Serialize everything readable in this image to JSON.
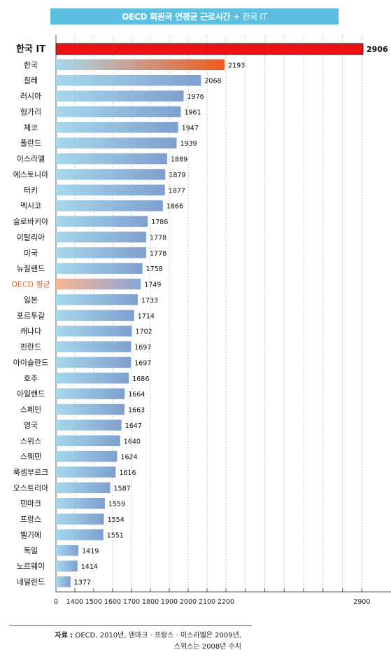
{
  "title": {
    "main": "OECD 회원국 연평균 근로시간",
    "highlight": "+ 한국 IT"
  },
  "chart_data": {
    "type": "bar",
    "orientation": "horizontal",
    "title": "OECD 회원국 연평균 근로시간 + 한국 IT",
    "categories": [
      "한국 IT",
      "한국",
      "칠레",
      "러시아",
      "헝가리",
      "체코",
      "폴란드",
      "이스라엘",
      "에스토니아",
      "터키",
      "멕시코",
      "슬로바키아",
      "이탈리아",
      "미국",
      "뉴질랜드",
      "OECD 평균",
      "일본",
      "포르투갈",
      "캐나다",
      "핀란드",
      "아이슬란드",
      "호주",
      "아일랜드",
      "스페인",
      "영국",
      "스위스",
      "스웨덴",
      "룩셈부르크",
      "오스트리아",
      "덴마크",
      "프랑스",
      "벨기에",
      "독일",
      "노르웨이",
      "네덜란드"
    ],
    "values": [
      2906,
      2193,
      2068,
      1976,
      1961,
      1947,
      1939,
      1889,
      1879,
      1877,
      1866,
      1786,
      1778,
      1778,
      1758,
      1749,
      1733,
      1714,
      1702,
      1697,
      1697,
      1686,
      1664,
      1663,
      1647,
      1640,
      1624,
      1616,
      1587,
      1559,
      1554,
      1551,
      1419,
      1414,
      1377
    ],
    "value_labels": [
      "2906",
      "2193",
      "2068",
      "1976",
      "1961",
      "1947",
      "1939",
      "1889",
      "1879",
      "1877",
      "1866",
      "1786",
      "1778",
      "1778",
      "1758",
      "1749",
      "1733",
      "1714",
      "1702",
      "1697",
      "1697",
      "1686",
      "1664",
      "1663",
      "1647",
      "1640",
      "1624",
      "1616",
      "1587",
      "1559",
      "1554",
      "1551",
      "1419",
      "1414",
      "1377"
    ],
    "x_ticks": [
      "0",
      "1400",
      "1500",
      "1600",
      "1700",
      "1800",
      "1900",
      "2000",
      "2100",
      "2200",
      "2900"
    ],
    "axis_break": "0 to 1300",
    "grid": true,
    "highlight": {
      "한국 IT": "red",
      "한국": "gradient-orange",
      "OECD 평균": "gradient-peach"
    },
    "colors": {
      "default_start": "#a6d8ec",
      "default_end": "#7f9fcf",
      "korea_it": "#ee1111",
      "korea_end": "#ef5a1e",
      "oecd_start": "#fbb594",
      "oecd_end": "#8aa6d4",
      "oecd_label": "#e86a2a",
      "grid": "#c8c8c8",
      "axis": "#555555"
    }
  },
  "source": {
    "label": "자료 :",
    "line1": "OECD, 2010년, 덴마크 · 프랑스 · 이스라엘은 2009년,",
    "line2": "스위스는 2008년 수치"
  }
}
